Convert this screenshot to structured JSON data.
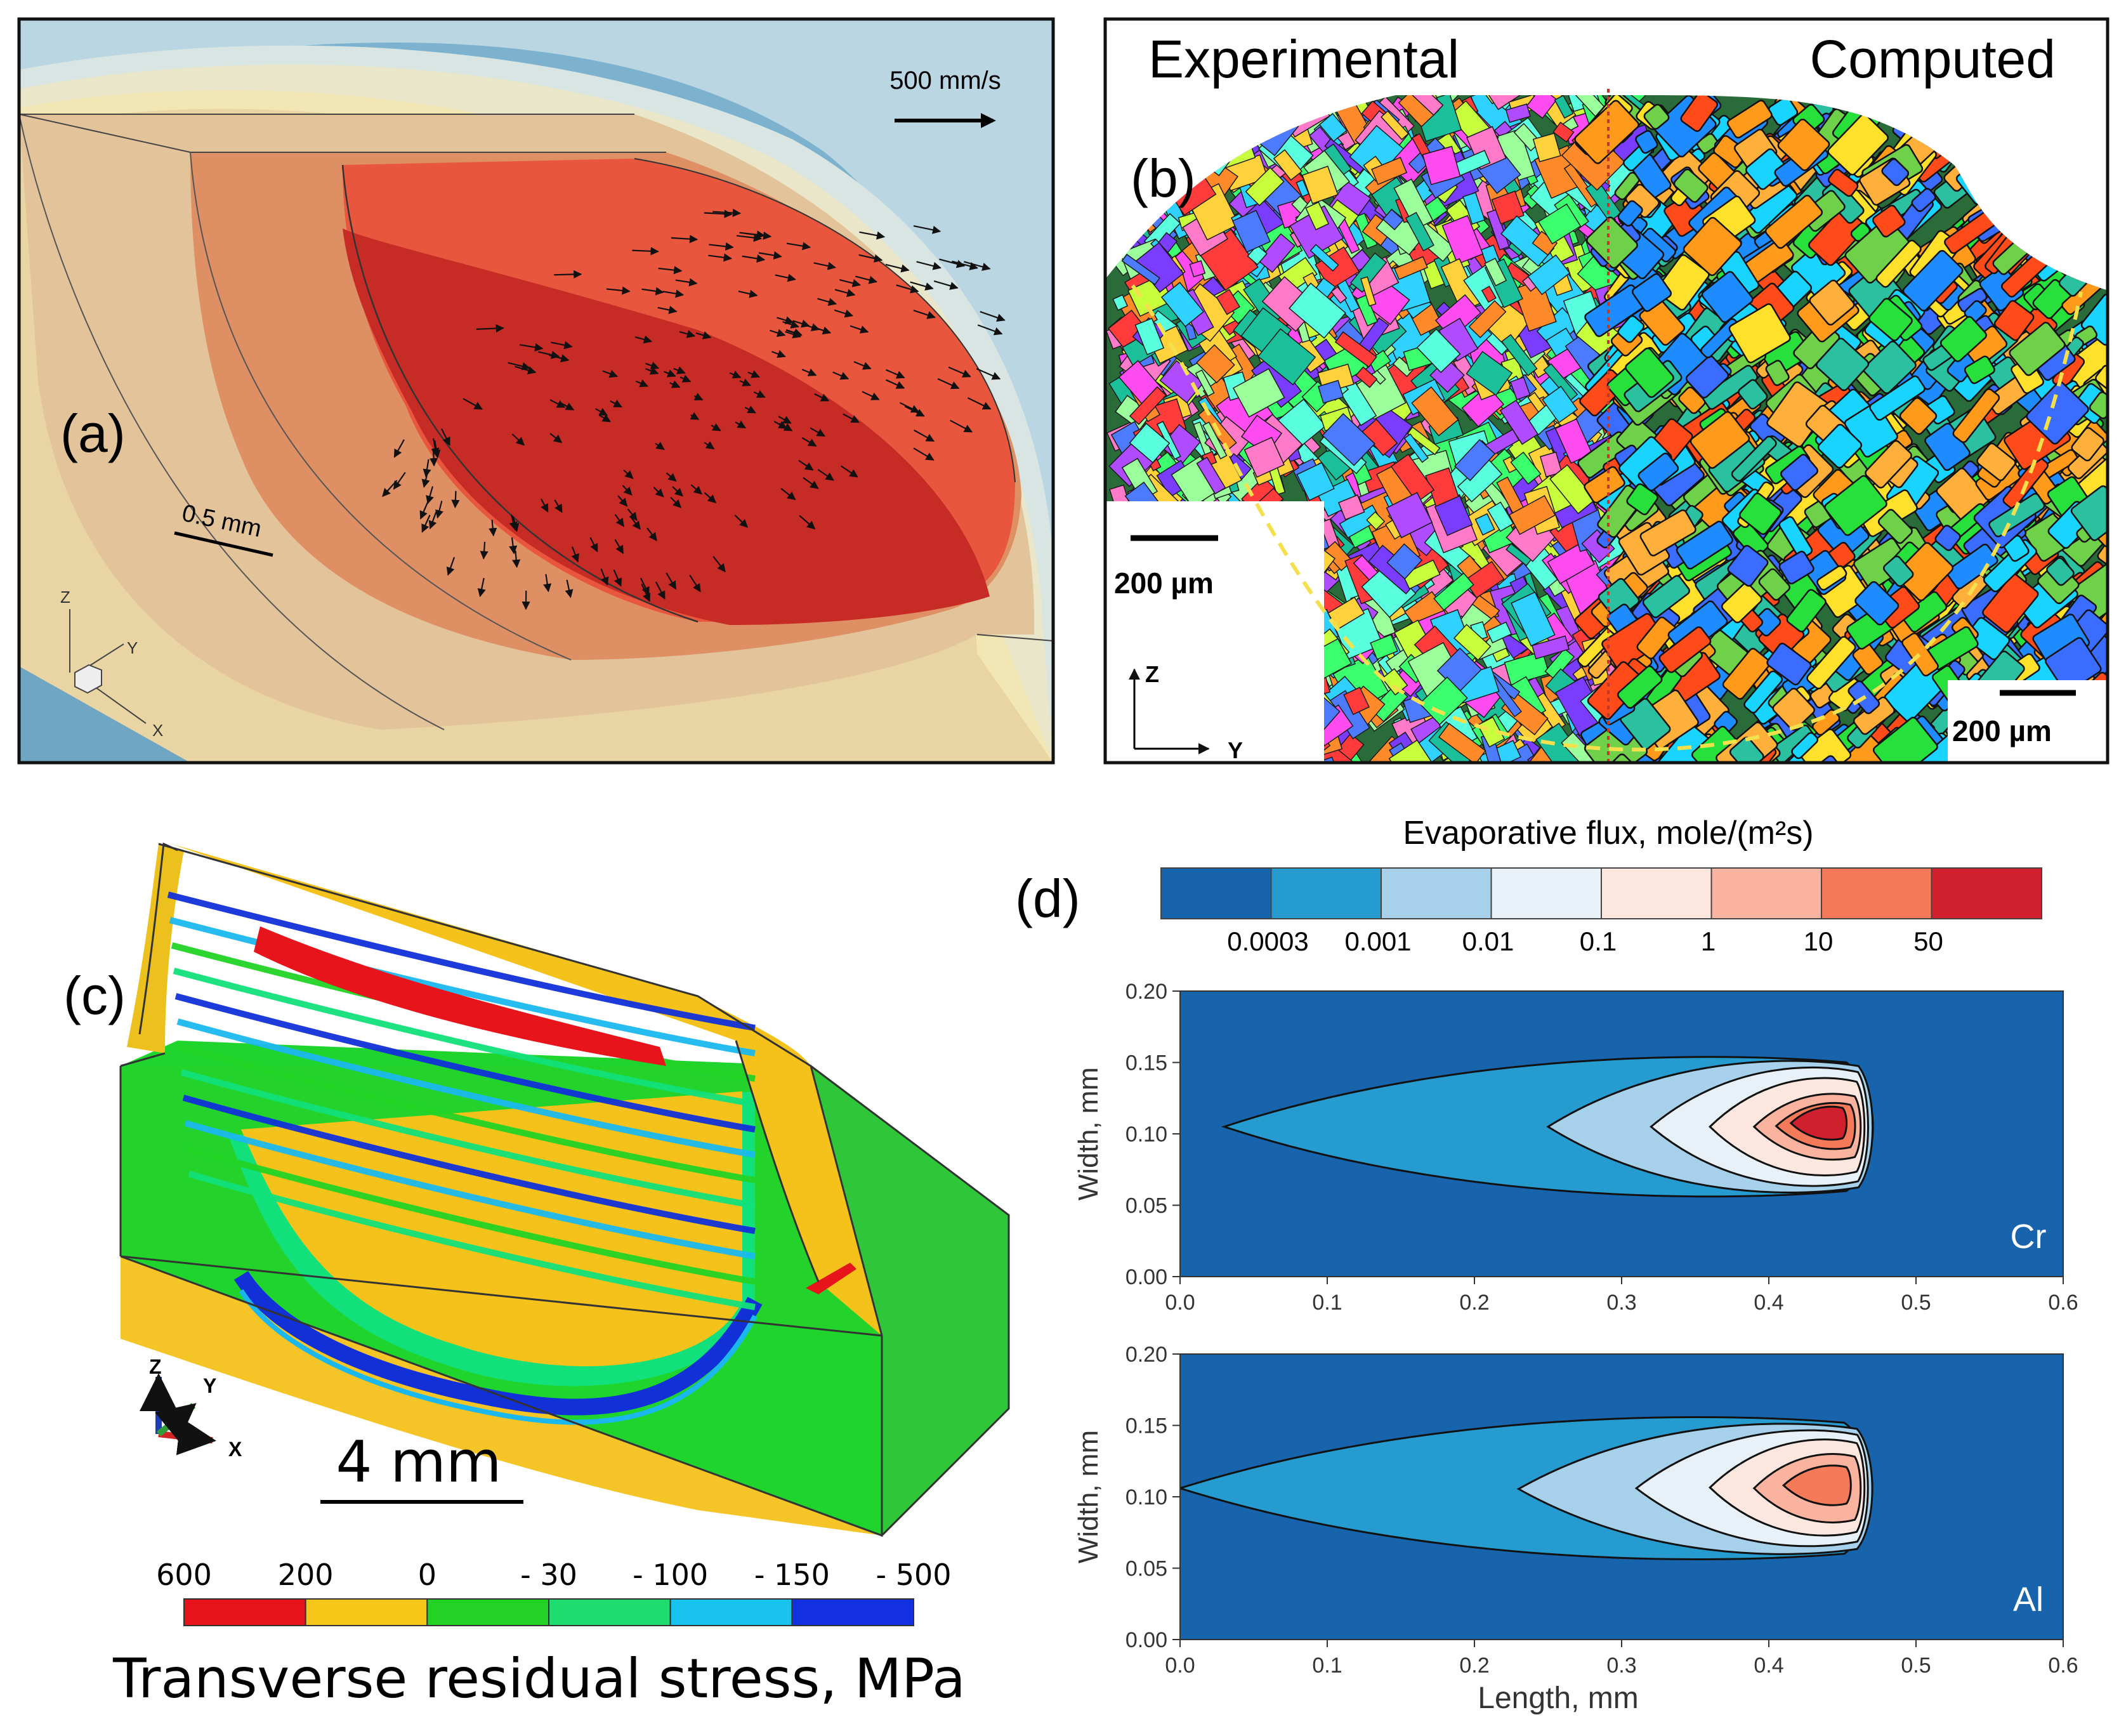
{
  "panels": {
    "a": {
      "label": "(a)",
      "velocity_scale": "500 mm/s",
      "scale_bar": "0.5 mm",
      "axes": {
        "z": "Z",
        "y": "Y",
        "x": "X"
      }
    },
    "b": {
      "label": "(b)",
      "left_title": "Experimental",
      "right_title": "Computed",
      "scale_left": "200 µm",
      "scale_right": "200 µm",
      "axes": {
        "z": "Z",
        "y": "Y"
      }
    },
    "c": {
      "label": "(c)",
      "scale_bar": "4 mm",
      "axes": {
        "z": "Z",
        "y": "Y",
        "x": "X"
      },
      "colorbar": {
        "title": "Transverse residual stress, MPa",
        "ticks": [
          "600",
          "200",
          "0",
          "- 30",
          "- 100",
          "- 150",
          "- 500"
        ],
        "colors": [
          "#e8141c",
          "#f5c518",
          "#22d325",
          "#1fdc6e",
          "#18c3f0",
          "#1230e0"
        ]
      }
    },
    "d": {
      "label": "(d)",
      "colorbar": {
        "title": "Evaporative flux, mole/(m²s)",
        "ticks": [
          "0.0003",
          "0.001",
          "0.01",
          "0.1",
          "1",
          "10",
          "50"
        ],
        "colors": [
          "#1764ad",
          "#259bd0",
          "#a7d1ea",
          "#e9f1f8",
          "#fde7df",
          "#f9b39e",
          "#f47a5a",
          "#d0202e"
        ]
      }
    }
  },
  "chart_data": [
    {
      "type": "contour",
      "title": "Cr",
      "xlabel": "Length, mm",
      "ylabel": "Width, mm",
      "xlim": [
        0.0,
        0.6
      ],
      "ylim": [
        0.0,
        0.2
      ],
      "xticks": [
        "0.0",
        "0.1",
        "0.2",
        "0.3",
        "0.4",
        "0.5",
        "0.6"
      ],
      "yticks": [
        "0.00",
        "0.05",
        "0.10",
        "0.15",
        "0.20"
      ],
      "contours": [
        {
          "level": "0.0003",
          "x_min": 0.03,
          "x_max": 0.475,
          "y_min": 0.052,
          "y_max": 0.158
        },
        {
          "level": "0.001",
          "x_min": 0.25,
          "x_max": 0.472,
          "y_min": 0.055,
          "y_max": 0.155
        },
        {
          "level": "0.01",
          "x_min": 0.32,
          "x_max": 0.468,
          "y_min": 0.06,
          "y_max": 0.15
        },
        {
          "level": "0.1",
          "x_min": 0.36,
          "x_max": 0.465,
          "y_min": 0.068,
          "y_max": 0.142
        },
        {
          "level": "1",
          "x_min": 0.39,
          "x_max": 0.462,
          "y_min": 0.08,
          "y_max": 0.13
        },
        {
          "level": "10",
          "x_min": 0.405,
          "x_max": 0.458,
          "y_min": 0.088,
          "y_max": 0.123
        },
        {
          "level": "50",
          "x_min": 0.415,
          "x_max": 0.452,
          "y_min": 0.095,
          "y_max": 0.12
        }
      ]
    },
    {
      "type": "contour",
      "title": "Al",
      "xlabel": "Length, mm",
      "ylabel": "Width, mm",
      "xlim": [
        0.0,
        0.6
      ],
      "ylim": [
        0.0,
        0.2
      ],
      "xticks": [
        "0.0",
        "0.1",
        "0.2",
        "0.3",
        "0.4",
        "0.5",
        "0.6"
      ],
      "yticks": [
        "0.00",
        "0.05",
        "0.10",
        "0.15",
        "0.20"
      ],
      "contours": [
        {
          "level": "0.0003",
          "x_min": 0.0,
          "x_max": 0.475,
          "y_min": 0.052,
          "y_max": 0.16
        },
        {
          "level": "0.001",
          "x_min": 0.23,
          "x_max": 0.472,
          "y_min": 0.056,
          "y_max": 0.155
        },
        {
          "level": "0.01",
          "x_min": 0.31,
          "x_max": 0.468,
          "y_min": 0.062,
          "y_max": 0.15
        },
        {
          "level": "0.1",
          "x_min": 0.36,
          "x_max": 0.465,
          "y_min": 0.07,
          "y_max": 0.143
        },
        {
          "level": "1",
          "x_min": 0.39,
          "x_max": 0.462,
          "y_min": 0.08,
          "y_max": 0.132
        },
        {
          "level": "10",
          "x_min": 0.41,
          "x_max": 0.455,
          "y_min": 0.093,
          "y_max": 0.123
        }
      ]
    }
  ]
}
